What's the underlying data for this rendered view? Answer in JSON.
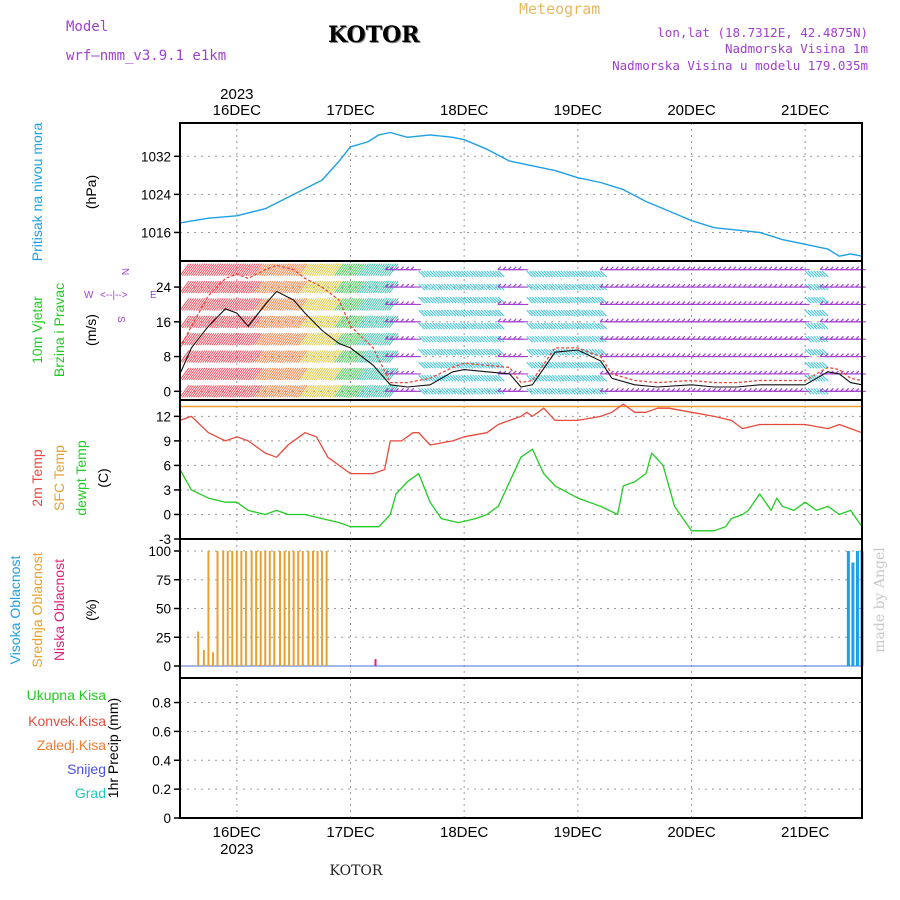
{
  "header": {
    "model_label": "Model",
    "model_name": "wrf—nmm_v3.9.1  e1km",
    "chart_title": "Meteogram",
    "location": "KOTOR",
    "coords": "lon,lat (18.7312E, 42.4875N)",
    "elevation": "Nadmorska Visina 1m",
    "model_elevation": "Nadmorska Visina u modelu 179.035m"
  },
  "footer": {
    "location": "KOTOR",
    "watermark": "made by Angel"
  },
  "colors": {
    "pressure": "#1ea0e6",
    "temp": "#e84a3c",
    "sfc_temp": "#e8a030",
    "dewpt": "#22cc22",
    "grid": "#9a9a9a",
    "purple": "#a040d0",
    "high_cloud": "#1ea0e6",
    "mid_cloud": "#e8a030",
    "low_cloud": "#e0207a"
  },
  "chart_data": [
    {
      "type": "line",
      "panel": "pressure",
      "ylabel": [
        "Pritisak na nivou mora",
        "(hPa)"
      ],
      "yticks": [
        1016,
        1024,
        1032
      ],
      "ylim": [
        1010,
        1039
      ],
      "x_year": "2023",
      "x_ticks": [
        "16DEC",
        "17DEC",
        "18DEC",
        "19DEC",
        "20DEC",
        "21DEC"
      ],
      "x_range_days": [
        15.5,
        21.5
      ],
      "series": [
        {
          "name": "Pritisak na nivou mora",
          "x": [
            15.5,
            15.75,
            16.0,
            16.25,
            16.5,
            16.75,
            16.9,
            17.0,
            17.15,
            17.25,
            17.35,
            17.5,
            17.7,
            17.9,
            18.0,
            18.2,
            18.4,
            18.6,
            18.8,
            19.0,
            19.2,
            19.4,
            19.6,
            19.8,
            20.0,
            20.2,
            20.4,
            20.6,
            20.8,
            21.0,
            21.2,
            21.3,
            21.4,
            21.5
          ],
          "y": [
            1018,
            1019,
            1019.5,
            1021,
            1024,
            1027,
            1031,
            1034,
            1035,
            1036.5,
            1037,
            1036,
            1036.5,
            1036,
            1035.5,
            1033.5,
            1031,
            1030,
            1029,
            1027.5,
            1026.5,
            1025,
            1022.5,
            1020.5,
            1018.5,
            1017,
            1016.5,
            1016,
            1014.5,
            1013.5,
            1012.5,
            1011,
            1011.5,
            1011
          ]
        }
      ]
    },
    {
      "type": "line",
      "panel": "wind",
      "ylabel": [
        "10m Vjetar",
        "Brzina i Pravac",
        "(m/s)"
      ],
      "compass": {
        "n": "N",
        "s": "S",
        "e": "E",
        "w": "W",
        "arrows": "<--|-->"
      },
      "yticks": [
        0,
        8,
        16,
        24
      ],
      "ylim": [
        -2,
        30
      ],
      "series": [
        {
          "name": "speed",
          "x": [
            15.5,
            15.6,
            15.75,
            15.9,
            16.0,
            16.1,
            16.25,
            16.35,
            16.5,
            16.6,
            16.75,
            16.9,
            17.0,
            17.2,
            17.35,
            17.5,
            17.7,
            17.9,
            18.0,
            18.2,
            18.4,
            18.5,
            18.6,
            18.8,
            19.0,
            19.2,
            19.3,
            19.5,
            19.7,
            20.0,
            20.2,
            20.4,
            20.6,
            20.8,
            21.0,
            21.1,
            21.2,
            21.3,
            21.4,
            21.5
          ],
          "y": [
            4,
            10,
            15,
            19,
            18,
            15,
            20,
            23,
            21,
            18,
            14,
            11,
            10,
            6,
            1.5,
            1,
            1.5,
            4.5,
            5,
            4.5,
            4,
            1,
            1.5,
            9,
            9.5,
            7,
            3,
            1.5,
            1,
            1.5,
            1,
            1,
            1.5,
            1.5,
            1.5,
            3,
            4.5,
            4,
            2,
            1.5
          ]
        },
        {
          "name": "gust",
          "x": [
            15.5,
            15.6,
            15.75,
            15.9,
            16.0,
            16.1,
            16.25,
            16.35,
            16.5,
            16.6,
            16.75,
            16.9,
            17.0,
            17.2,
            17.35,
            17.5,
            17.7,
            17.9,
            18.0,
            18.2,
            18.4,
            18.5,
            18.6,
            18.8,
            19.0,
            19.2,
            19.3,
            19.5,
            19.7,
            20.0,
            20.2,
            20.4,
            20.6,
            20.8,
            21.0,
            21.1,
            21.2,
            21.3,
            21.4,
            21.5
          ],
          "y": [
            10,
            15,
            22,
            26,
            27,
            26,
            28,
            29,
            28,
            26,
            24,
            21,
            15,
            10,
            2,
            2,
            3,
            5.5,
            6.5,
            6,
            5.5,
            2,
            2.5,
            10,
            10,
            8,
            4,
            2.5,
            2,
            2.5,
            2,
            2,
            2.5,
            2.5,
            2.5,
            4,
            5.5,
            5,
            3,
            2.5
          ]
        }
      ]
    },
    {
      "type": "line",
      "panel": "temperature",
      "ylabel": [
        "2m Temp",
        "SFC Temp",
        "dewpt Temp",
        "(C)"
      ],
      "yticks": [
        -3,
        0,
        3,
        6,
        9,
        12
      ],
      "ylim": [
        -3,
        14
      ],
      "series": [
        {
          "name": "2m Temp",
          "x": [
            15.5,
            15.6,
            15.75,
            15.9,
            16.0,
            16.1,
            16.25,
            16.35,
            16.45,
            16.6,
            16.7,
            16.8,
            16.9,
            17.0,
            17.1,
            17.2,
            17.3,
            17.35,
            17.45,
            17.55,
            17.6,
            17.7,
            17.9,
            18.0,
            18.2,
            18.3,
            18.4,
            18.5,
            18.55,
            18.6,
            18.7,
            18.8,
            19.0,
            19.2,
            19.3,
            19.4,
            19.5,
            19.6,
            19.7,
            19.8,
            20.0,
            20.2,
            20.35,
            20.45,
            20.6,
            20.8,
            21.0,
            21.2,
            21.3,
            21.4,
            21.5
          ],
          "y": [
            11.5,
            12,
            10,
            9,
            9.5,
            9,
            7.5,
            7,
            8.5,
            10,
            9.5,
            7,
            6,
            5,
            5,
            5,
            5.5,
            9,
            9,
            10,
            10,
            8.5,
            9,
            9.5,
            10,
            11,
            11.5,
            12,
            12.5,
            12,
            13,
            11.5,
            11.5,
            12,
            12.5,
            13.5,
            12.5,
            12.5,
            13,
            13,
            12.5,
            12,
            11.5,
            10.5,
            11,
            11,
            11,
            10.5,
            11,
            10.5,
            10
          ]
        },
        {
          "name": "SFC Temp",
          "x": [
            15.5,
            21.5
          ],
          "y": [
            13.2,
            13.2
          ]
        },
        {
          "name": "dewpt Temp",
          "x": [
            15.5,
            15.6,
            15.75,
            15.9,
            16.0,
            16.1,
            16.25,
            16.35,
            16.45,
            16.6,
            16.75,
            16.9,
            17.0,
            17.15,
            17.25,
            17.35,
            17.4,
            17.5,
            17.6,
            17.7,
            17.8,
            17.95,
            18.1,
            18.2,
            18.3,
            18.4,
            18.5,
            18.6,
            18.7,
            18.8,
            19.0,
            19.2,
            19.35,
            19.4,
            19.5,
            19.6,
            19.65,
            19.75,
            19.85,
            20.0,
            20.2,
            20.3,
            20.35,
            20.45,
            20.5,
            20.6,
            20.7,
            20.75,
            20.8,
            20.9,
            21.0,
            21.1,
            21.2,
            21.3,
            21.4,
            21.5
          ],
          "y": [
            5.5,
            3,
            2,
            1.5,
            1.5,
            0.5,
            0,
            0.5,
            0,
            0,
            -0.5,
            -1,
            -1.5,
            -1.5,
            -1.5,
            0,
            2.5,
            4,
            5,
            1.5,
            -0.5,
            -1,
            -0.5,
            0,
            1,
            4,
            7,
            8,
            5,
            3.5,
            2,
            1,
            0,
            3.5,
            4,
            5,
            7.5,
            6,
            1,
            -2,
            -2,
            -1.5,
            -0.5,
            0,
            0.5,
            2.5,
            0.5,
            2,
            1,
            0.5,
            1.5,
            0.5,
            1,
            0,
            0.5,
            -1.5
          ]
        }
      ]
    },
    {
      "type": "bar",
      "panel": "clouds",
      "ylabel": [
        "Visoka Oblacnost",
        "Srednja Oblacnost",
        "Niska Oblacnost",
        "(%)"
      ],
      "yticks": [
        0,
        25,
        50,
        75,
        100
      ],
      "ylim": [
        0,
        100
      ],
      "series": [
        {
          "name": "Srednja Oblacnost",
          "x": [
            15.66,
            15.71,
            15.75,
            15.79,
            15.83,
            15.88,
            15.92,
            15.96,
            16.0,
            16.04,
            16.08,
            16.13,
            16.17,
            16.21,
            16.25,
            16.29,
            16.33,
            16.38,
            16.42,
            16.46,
            16.5,
            16.54,
            16.58,
            16.63,
            16.67,
            16.71,
            16.75,
            16.79,
            21.46
          ],
          "values": [
            30,
            14,
            100,
            12,
            100,
            100,
            100,
            100,
            100,
            100,
            100,
            100,
            100,
            100,
            100,
            100,
            100,
            100,
            100,
            100,
            100,
            100,
            100,
            100,
            100,
            100,
            100,
            100,
            75
          ]
        },
        {
          "name": "Visoka Oblacnost",
          "x": [
            21.38,
            21.42,
            21.46,
            21.5
          ],
          "values": [
            100,
            90,
            100,
            100
          ]
        },
        {
          "name": "Niska Oblacnost",
          "x": [
            17.22
          ],
          "values": [
            6
          ]
        }
      ]
    },
    {
      "type": "bar",
      "panel": "precipitation",
      "ylabel": [
        "Ukupna Kisa",
        "Konvek.Kisa",
        "Zaledj.Kisa",
        "Snijeg",
        "Grad",
        "1hr Precip (mm)"
      ],
      "yticks": [
        0,
        0.2,
        0.4,
        0.6,
        0.8
      ],
      "ylim": [
        0,
        0.97
      ],
      "series": []
    }
  ]
}
